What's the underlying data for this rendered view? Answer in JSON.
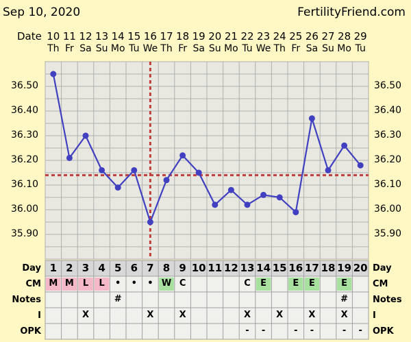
{
  "header": {
    "date_text": "Sep 10, 2020",
    "site": "FertilityFriend.com",
    "date_row_label": "Date"
  },
  "dates": [
    "10",
    "11",
    "12",
    "13",
    "14",
    "15",
    "16",
    "17",
    "18",
    "19",
    "20",
    "21",
    "22",
    "23",
    "24",
    "25",
    "26",
    "27",
    "28",
    "29"
  ],
  "weekdays": [
    "Th",
    "Fr",
    "Sa",
    "Su",
    "Mo",
    "Tu",
    "We",
    "Th",
    "Fr",
    "Sa",
    "Su",
    "Mo",
    "Tu",
    "We",
    "Th",
    "Fr",
    "Sa",
    "Su",
    "Mo",
    "Tu"
  ],
  "rows": {
    "day_label": "Day",
    "cm_label": "CM",
    "notes_label": "Notes",
    "i_label": "I",
    "opk_label": "OPK"
  },
  "days": [
    "1",
    "2",
    "3",
    "4",
    "5",
    "6",
    "7",
    "8",
    "9",
    "10",
    "11",
    "12",
    "13",
    "14",
    "15",
    "16",
    "17",
    "18",
    "19",
    "20"
  ],
  "cm": [
    "M",
    "M",
    "L",
    "L",
    "•",
    "•",
    "•",
    "W",
    "C",
    "",
    "",
    "",
    "C",
    "E",
    "",
    "E",
    "E",
    "",
    "E",
    ""
  ],
  "cm_colors": {
    "menses": "#f4b8c8",
    "egg_white": "#a8e0a0"
  },
  "cm_bg": [
    "menses",
    "menses",
    "menses",
    "menses",
    "",
    "",
    "",
    "egg_white",
    "",
    "",
    "",
    "",
    "",
    "egg_white",
    "",
    "egg_white",
    "egg_white",
    "",
    "egg_white",
    ""
  ],
  "notes": [
    "",
    "",
    "",
    "",
    "#",
    "",
    "",
    "",
    "",
    "",
    "",
    "",
    "",
    "",
    "",
    "",
    "",
    "",
    "#",
    ""
  ],
  "intercourse": [
    "",
    "",
    "X",
    "",
    "",
    "",
    "X",
    "",
    "X",
    "",
    "",
    "",
    "X",
    "",
    "X",
    "",
    "X",
    "",
    "X",
    ""
  ],
  "opk": [
    "",
    "",
    "",
    "",
    "",
    "",
    "",
    "",
    "",
    "",
    "",
    "",
    "-",
    "-",
    "",
    "-",
    "-",
    "",
    "-",
    "-"
  ],
  "colors": {
    "line": "#4040c0",
    "coverline": "#c04040",
    "grid": "#b0b0b0",
    "plot_bg": "#e8e8e0",
    "table_bg": "#f0f0ec",
    "page_bg": "#fff8c4",
    "day_row_bg": "#d8d8d8"
  },
  "chart_data": {
    "type": "line",
    "x": [
      "10",
      "11",
      "12",
      "13",
      "14",
      "15",
      "16",
      "17",
      "18",
      "19",
      "20",
      "21",
      "22",
      "23",
      "24",
      "25",
      "26",
      "27",
      "28",
      "29"
    ],
    "y": [
      36.55,
      36.21,
      36.3,
      36.16,
      36.09,
      36.16,
      35.95,
      36.12,
      36.22,
      36.15,
      36.02,
      36.08,
      36.02,
      36.06,
      36.05,
      35.99,
      36.37,
      36.16,
      36.26,
      36.18
    ],
    "y_ticks": [
      "36.50",
      "36.40",
      "36.30",
      "36.20",
      "36.10",
      "36.00",
      "35.90"
    ],
    "ylim": [
      35.8,
      36.6
    ],
    "coverline": 36.14,
    "ovulation_day": "16",
    "grid": true
  }
}
